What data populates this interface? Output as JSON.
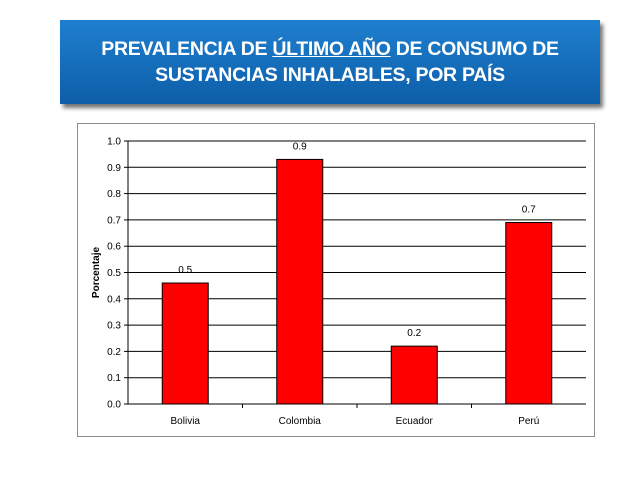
{
  "title": {
    "part1": "PREVALENCIA DE ",
    "underlined": "ÚLTIMO AÑO",
    "part2": " DE CONSUMO DE",
    "line2": "SUSTANCIAS INHALABLES, POR PAÍS"
  },
  "colors": {
    "bar_fill": "#ff0000",
    "bar_stroke": "#000000",
    "banner": "#1a73c2"
  },
  "chart_data": {
    "type": "bar",
    "categories": [
      "Bolivia",
      "Colombia",
      "Ecuador",
      "Perú"
    ],
    "values": [
      0.46,
      0.93,
      0.22,
      0.69
    ],
    "data_labels": [
      "0.5",
      "0.9",
      "0.2",
      "0.7"
    ],
    "ylabel": "Porcentaje",
    "xlabel": "",
    "ylim": [
      0,
      1.0
    ],
    "yticks": [
      "0.0",
      "0.1",
      "0.2",
      "0.3",
      "0.4",
      "0.5",
      "0.6",
      "0.7",
      "0.8",
      "0.9",
      "1.0"
    ],
    "grid": true
  }
}
